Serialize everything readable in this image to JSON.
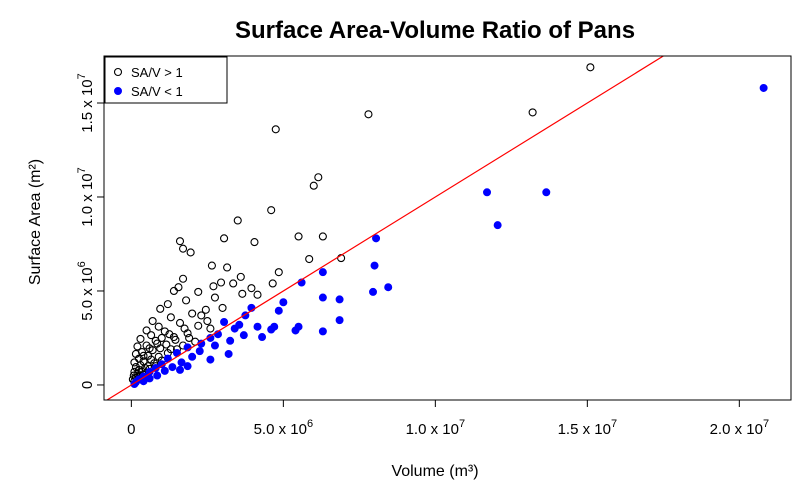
{
  "chart_data": {
    "type": "scatter",
    "title": "Surface Area-Volume Ratio of Pans",
    "xlabel": "Volume (m³)",
    "ylabel": "Surface Area (m²)",
    "xlim": [
      -900000,
      21700000
    ],
    "ylim": [
      -800000,
      17500000
    ],
    "x_ticks": [
      {
        "value": 0,
        "mant": "0",
        "exp": ""
      },
      {
        "value": 5000000,
        "mant": "5.0 x 10",
        "exp": "6"
      },
      {
        "value": 10000000,
        "mant": "1.0 x 10",
        "exp": "7"
      },
      {
        "value": 15000000,
        "mant": "1.5 x 10",
        "exp": "7"
      },
      {
        "value": 20000000,
        "mant": "2.0 x 10",
        "exp": "7"
      }
    ],
    "y_ticks": [
      {
        "value": 0,
        "mant": "0",
        "exp": ""
      },
      {
        "value": 5000000,
        "mant": "5.0 x 10",
        "exp": "6"
      },
      {
        "value": 10000000,
        "mant": "1.0 x 10",
        "exp": "7"
      },
      {
        "value": 15000000,
        "mant": "1.5 x 10",
        "exp": "7"
      }
    ],
    "reference_line": {
      "slope": 1,
      "intercept": 0,
      "color": "#ff0000"
    },
    "legend": {
      "position": "top-left",
      "entries": [
        {
          "label": "SA/V > 1",
          "marker": "open-circle",
          "color": "#000000"
        },
        {
          "label": "SA/V < 1",
          "marker": "filled-circle",
          "color": "#0000ff"
        }
      ]
    },
    "series": [
      {
        "name": "SA/V > 1",
        "marker": "open-circle",
        "color": "#000000",
        "points": [
          [
            4750000,
            13600000
          ],
          [
            7800000,
            14400000
          ],
          [
            13200000,
            14500000
          ],
          [
            15100000,
            16900000
          ],
          [
            6000000,
            10600000
          ],
          [
            6150000,
            11050000
          ],
          [
            4600000,
            9300000
          ],
          [
            3500000,
            8750000
          ],
          [
            5500000,
            7900000
          ],
          [
            6300000,
            7900000
          ],
          [
            3050000,
            7800000
          ],
          [
            4050000,
            7600000
          ],
          [
            1600000,
            7650000
          ],
          [
            1700000,
            7250000
          ],
          [
            1950000,
            7050000
          ],
          [
            6900000,
            6750000
          ],
          [
            5850000,
            6700000
          ],
          [
            2650000,
            6350000
          ],
          [
            3150000,
            6250000
          ],
          [
            3600000,
            5750000
          ],
          [
            4850000,
            6000000
          ],
          [
            1700000,
            5650000
          ],
          [
            2950000,
            5450000
          ],
          [
            3350000,
            5400000
          ],
          [
            2700000,
            5250000
          ],
          [
            4650000,
            5400000
          ],
          [
            3950000,
            5150000
          ],
          [
            1550000,
            5200000
          ],
          [
            1400000,
            5000000
          ],
          [
            2200000,
            4950000
          ],
          [
            3650000,
            4850000
          ],
          [
            2750000,
            4650000
          ],
          [
            4150000,
            4800000
          ],
          [
            1800000,
            4500000
          ],
          [
            1200000,
            4300000
          ],
          [
            950000,
            4050000
          ],
          [
            2450000,
            4000000
          ],
          [
            2000000,
            3800000
          ],
          [
            1300000,
            3600000
          ],
          [
            700000,
            3400000
          ],
          [
            1600000,
            3300000
          ],
          [
            2200000,
            3150000
          ],
          [
            900000,
            3100000
          ],
          [
            500000,
            2900000
          ],
          [
            1100000,
            2850000
          ],
          [
            1850000,
            2750000
          ],
          [
            650000,
            2650000
          ],
          [
            1400000,
            2550000
          ],
          [
            300000,
            2450000
          ],
          [
            800000,
            2350000
          ],
          [
            2100000,
            2300000
          ],
          [
            1150000,
            2150000
          ],
          [
            500000,
            2100000
          ],
          [
            200000,
            2050000
          ],
          [
            950000,
            1950000
          ],
          [
            1500000,
            1900000
          ],
          [
            700000,
            1850000
          ],
          [
            350000,
            1750000
          ],
          [
            1200000,
            1700000
          ],
          [
            150000,
            1650000
          ],
          [
            550000,
            1550000
          ],
          [
            900000,
            1500000
          ],
          [
            250000,
            1400000
          ],
          [
            650000,
            1350000
          ],
          [
            1000000,
            1300000
          ],
          [
            400000,
            1250000
          ],
          [
            100000,
            1200000
          ],
          [
            750000,
            1150000
          ],
          [
            300000,
            1050000
          ],
          [
            550000,
            1000000
          ],
          [
            150000,
            950000
          ],
          [
            450000,
            900000
          ],
          [
            800000,
            1000000
          ],
          [
            250000,
            800000
          ],
          [
            600000,
            850000
          ],
          [
            100000,
            700000
          ],
          [
            350000,
            700000
          ],
          [
            200000,
            600000
          ],
          [
            500000,
            650000
          ],
          [
            80000,
            500000
          ],
          [
            300000,
            500000
          ],
          [
            150000,
            400000
          ],
          [
            50000,
            300000
          ],
          [
            250000,
            350000
          ],
          [
            100000,
            200000
          ],
          [
            400000,
            550000
          ],
          [
            1300000,
            1900000
          ],
          [
            1700000,
            2100000
          ],
          [
            1000000,
            2500000
          ],
          [
            2500000,
            3400000
          ],
          [
            3000000,
            4100000
          ],
          [
            2300000,
            3700000
          ],
          [
            1750000,
            3000000
          ],
          [
            1250000,
            2700000
          ],
          [
            850000,
            2200000
          ],
          [
            600000,
            1950000
          ],
          [
            400000,
            1550000
          ],
          [
            1450000,
            2400000
          ],
          [
            1900000,
            2500000
          ],
          [
            2600000,
            3000000
          ]
        ]
      },
      {
        "name": "SA/V < 1",
        "marker": "filled-circle",
        "color": "#0000ff",
        "points": [
          [
            20800000,
            15800000
          ],
          [
            11700000,
            10250000
          ],
          [
            13650000,
            10250000
          ],
          [
            12050000,
            8500000
          ],
          [
            8050000,
            7800000
          ],
          [
            8000000,
            6350000
          ],
          [
            6300000,
            6000000
          ],
          [
            5600000,
            5450000
          ],
          [
            8450000,
            5200000
          ],
          [
            7950000,
            4950000
          ],
          [
            6300000,
            4650000
          ],
          [
            6850000,
            4550000
          ],
          [
            5000000,
            4400000
          ],
          [
            3950000,
            4100000
          ],
          [
            4850000,
            3950000
          ],
          [
            3750000,
            3700000
          ],
          [
            6850000,
            3450000
          ],
          [
            3050000,
            3350000
          ],
          [
            3550000,
            3200000
          ],
          [
            4150000,
            3100000
          ],
          [
            4700000,
            3100000
          ],
          [
            5500000,
            3100000
          ],
          [
            3400000,
            3000000
          ],
          [
            4600000,
            2950000
          ],
          [
            5400000,
            2900000
          ],
          [
            6300000,
            2850000
          ],
          [
            2850000,
            2700000
          ],
          [
            3700000,
            2650000
          ],
          [
            4300000,
            2550000
          ],
          [
            2600000,
            2500000
          ],
          [
            3250000,
            2350000
          ],
          [
            2300000,
            2200000
          ],
          [
            1850000,
            2000000
          ],
          [
            2750000,
            2100000
          ],
          [
            1500000,
            1700000
          ],
          [
            2250000,
            1800000
          ],
          [
            3200000,
            1650000
          ],
          [
            1200000,
            1400000
          ],
          [
            2000000,
            1500000
          ],
          [
            2600000,
            1350000
          ],
          [
            1000000,
            1100000
          ],
          [
            1650000,
            1200000
          ],
          [
            800000,
            900000
          ],
          [
            1350000,
            950000
          ],
          [
            1850000,
            1000000
          ],
          [
            600000,
            700000
          ],
          [
            1100000,
            750000
          ],
          [
            400000,
            450000
          ],
          [
            850000,
            500000
          ],
          [
            250000,
            300000
          ],
          [
            600000,
            350000
          ],
          [
            150000,
            150000
          ],
          [
            400000,
            200000
          ],
          [
            100000,
            50000
          ],
          [
            1600000,
            800000
          ]
        ]
      }
    ]
  }
}
